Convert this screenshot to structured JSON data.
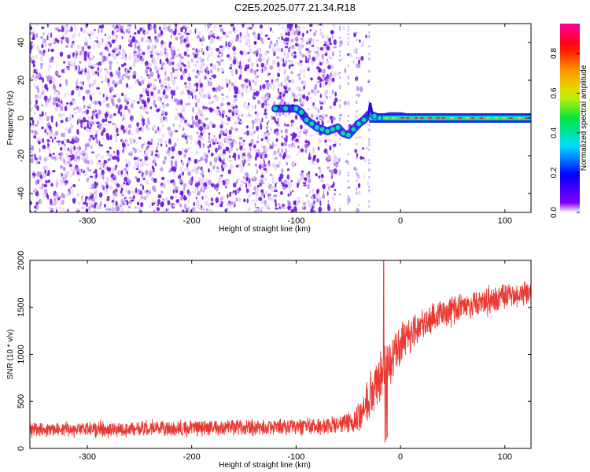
{
  "title": "C2E5.2025.077.21.34.R18",
  "colors": {
    "spectrogram_noise": "#7a1ee0",
    "snr_line": "#e83a33",
    "axis": "#000000",
    "track_points": "#00e0a0"
  },
  "chart_data": [
    {
      "type": "heatmap",
      "title": "C2E5.2025.077.21.34.R18",
      "xlabel": "Height of straight line (km)",
      "ylabel": "Frequency (Hz)",
      "xlim": [
        -355,
        125
      ],
      "ylim": [
        -50,
        50
      ],
      "x_ticks": [
        -300,
        -200,
        -100,
        0,
        100
      ],
      "y_ticks": [
        -40,
        -20,
        0,
        20,
        40
      ],
      "colorbar": {
        "label": "Normalized spectral amplitude",
        "range": [
          0.0,
          0.95
        ],
        "ticks": [
          0.0,
          0.2,
          0.4,
          0.6,
          0.8
        ],
        "colormap": "rainbow"
      },
      "noise_region_x": [
        -355,
        -30
      ],
      "signal_track": {
        "x": [
          -120,
          -110,
          -100,
          -95,
          -90,
          -85,
          -80,
          -75,
          -70,
          -65,
          -60,
          -55,
          -50,
          -45,
          -40,
          -35,
          -30,
          -25,
          -20,
          -10,
          0,
          10,
          20,
          40,
          60,
          80,
          100,
          125
        ],
        "y": [
          5,
          5,
          5,
          3,
          -1,
          -3,
          -5,
          -6,
          -7,
          -6,
          -5,
          -8,
          -9,
          -6,
          -3,
          -1,
          2,
          1,
          0,
          1,
          1,
          0,
          0,
          0,
          0,
          0,
          0,
          0
        ]
      },
      "grid": false
    },
    {
      "type": "line",
      "xlabel": "Height of straight line (km)",
      "ylabel": "SNR (10 * v/v)",
      "xlim": [
        -355,
        125
      ],
      "ylim": [
        0,
        2000
      ],
      "x_ticks": [
        -300,
        -200,
        -100,
        0,
        100
      ],
      "y_ticks": [
        0,
        500,
        1000,
        1500,
        2000
      ],
      "trend": {
        "x": [
          -355,
          -300,
          -250,
          -200,
          -150,
          -100,
          -60,
          -45,
          -35,
          -25,
          -20,
          -15,
          -10,
          -5,
          0,
          5,
          10,
          20,
          30,
          40,
          60,
          80,
          100,
          125
        ],
        "y": [
          200,
          200,
          210,
          215,
          220,
          230,
          245,
          280,
          400,
          650,
          760,
          860,
          950,
          1030,
          1090,
          1150,
          1220,
          1320,
          1390,
          1430,
          1510,
          1570,
          1620,
          1660
        ]
      },
      "noise_amplitude": {
        "x": [
          -355,
          -60,
          -45,
          -35,
          -25,
          -15,
          0,
          20,
          60,
          125
        ],
        "y": [
          90,
          110,
          140,
          220,
          330,
          320,
          280,
          200,
          170,
          160
        ]
      },
      "spike": {
        "x": -16,
        "y": 2000
      },
      "grid": false
    }
  ]
}
